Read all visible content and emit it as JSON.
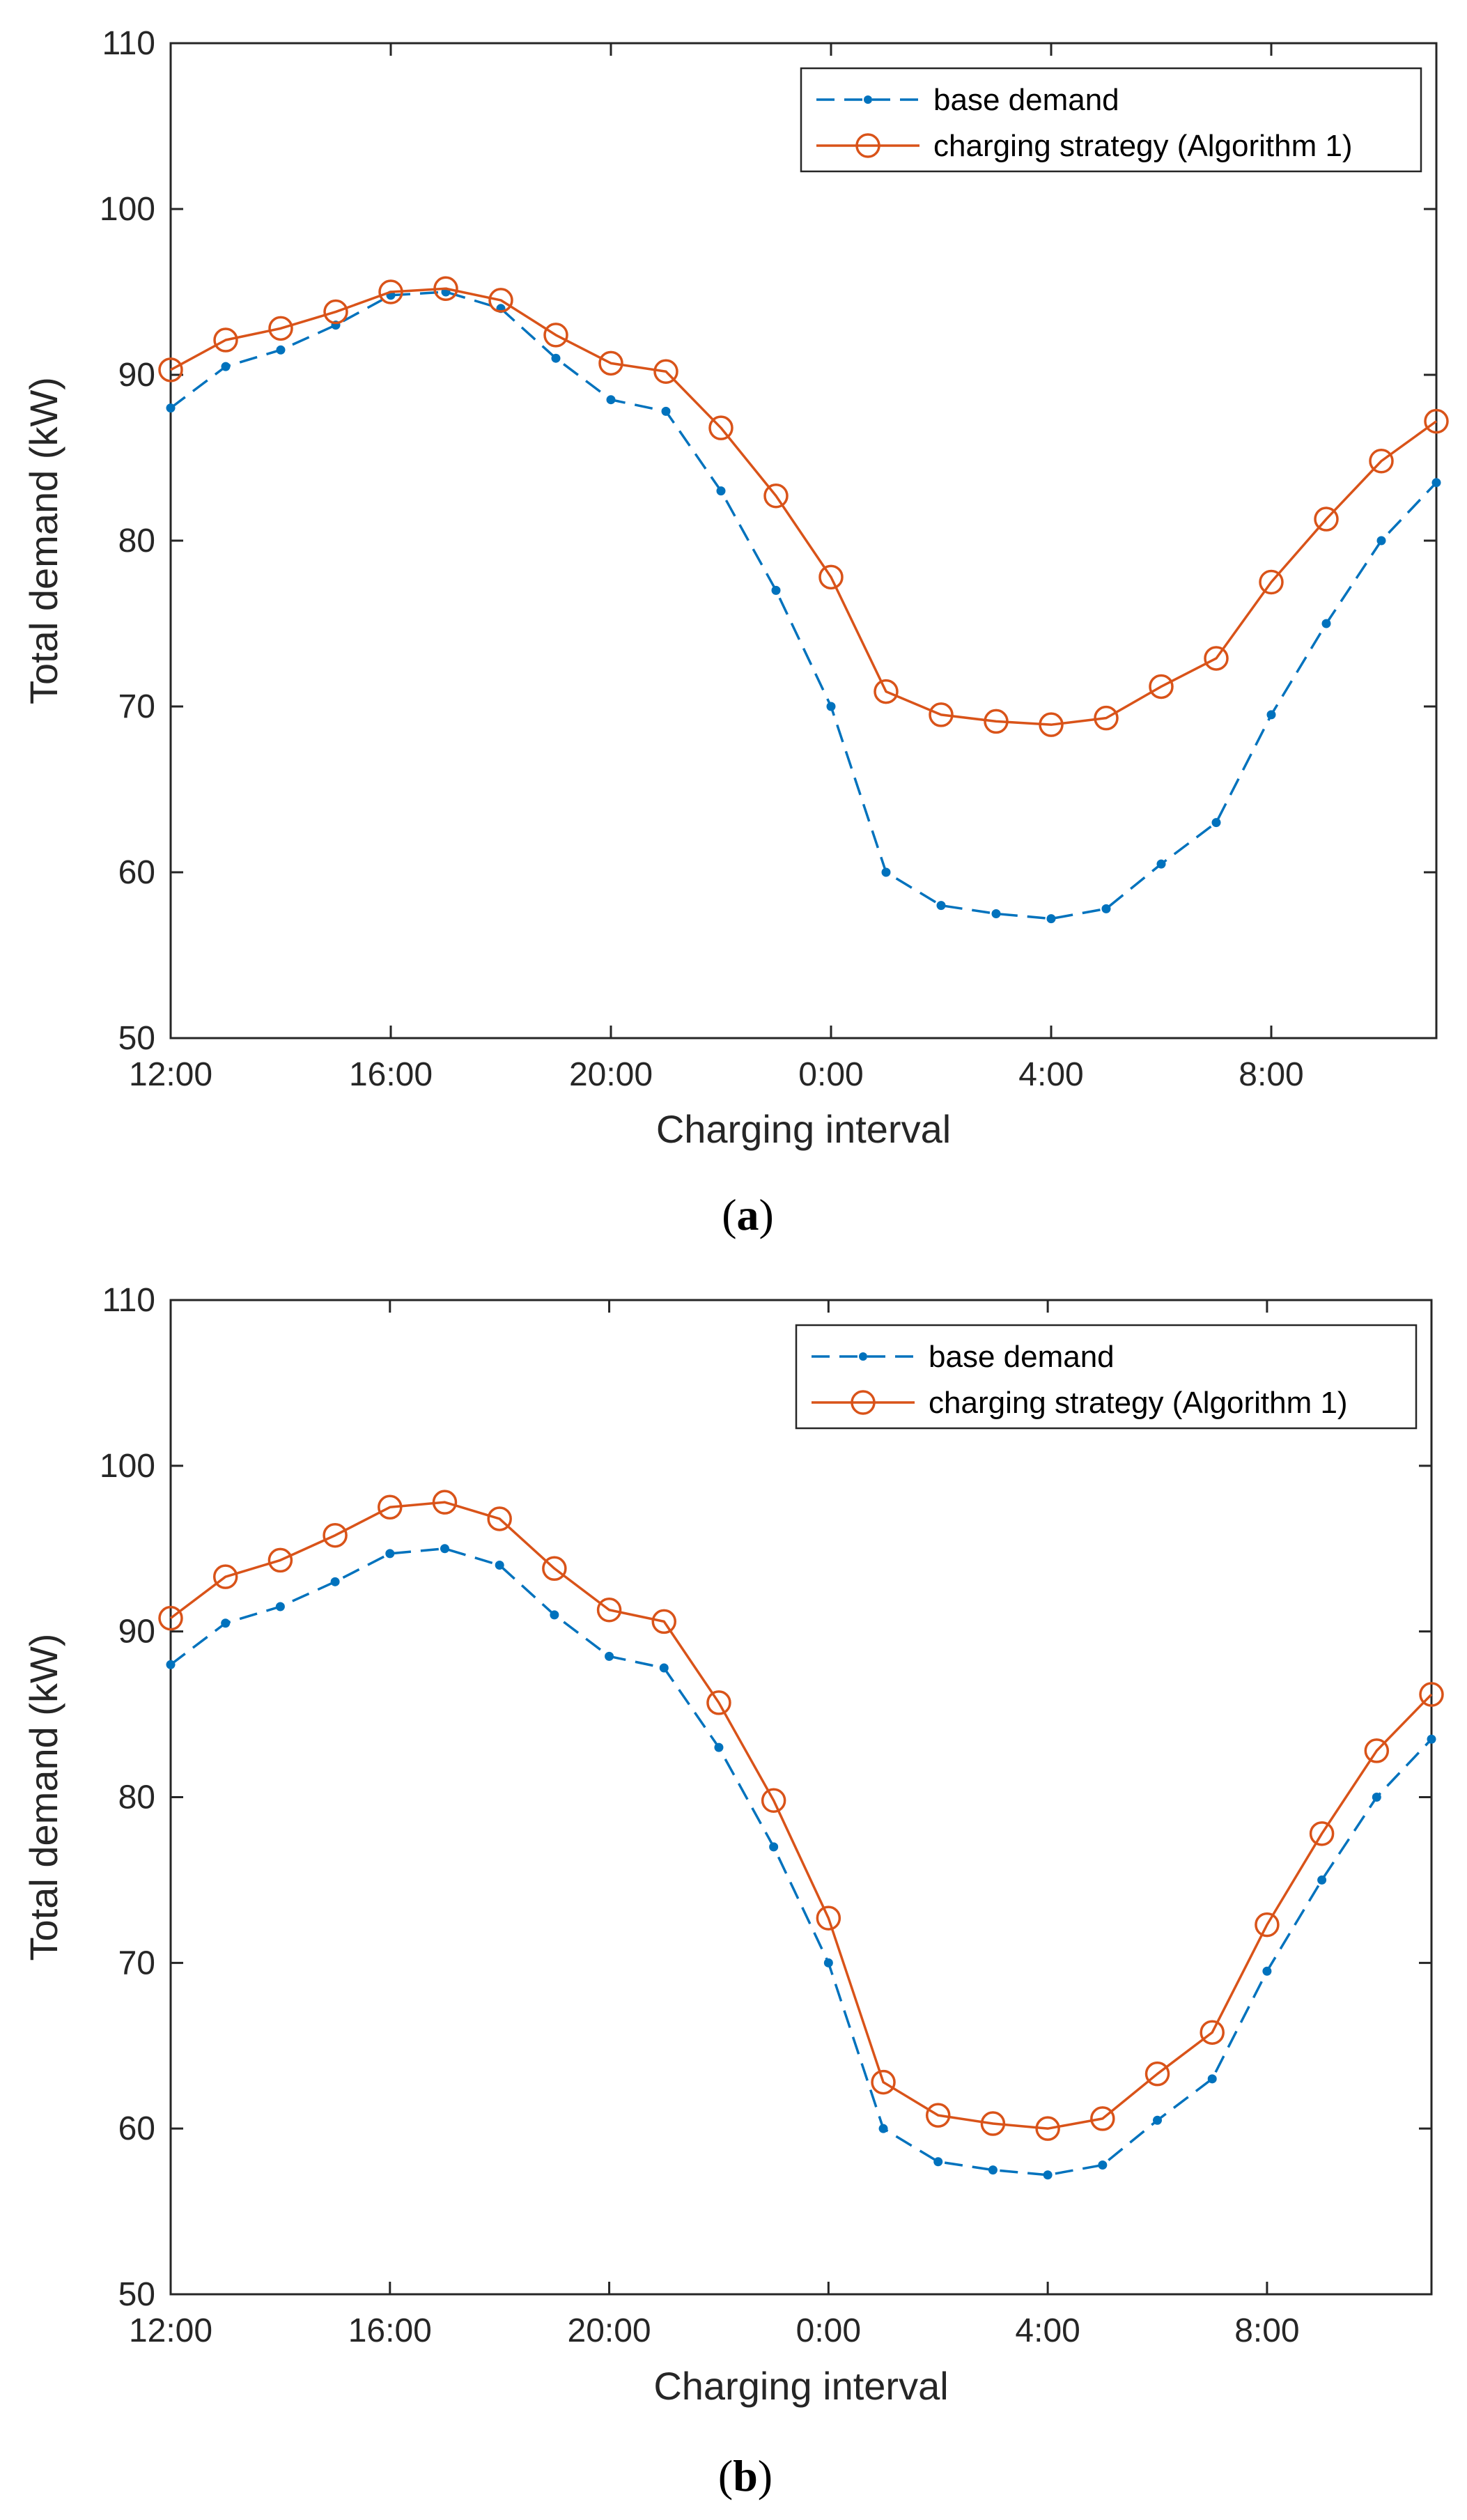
{
  "chart_data": [
    {
      "type": "line",
      "caption_open": "(",
      "caption_letter": "a",
      "caption_close": ")",
      "xlabel": "Charging interval",
      "ylabel": "Total demand (kW)",
      "ylim": [
        50,
        110
      ],
      "yticks": [
        50,
        60,
        70,
        80,
        90,
        100,
        110
      ],
      "xlim": [
        0,
        23
      ],
      "xticks": [
        0,
        4,
        8,
        12,
        16,
        20
      ],
      "xticklabels": [
        "12:00",
        "16:00",
        "20:00",
        "0:00",
        "4:00",
        "8:00"
      ],
      "legend_position": "top-right",
      "x": [
        0,
        1,
        2,
        3,
        4,
        5,
        6,
        7,
        8,
        9,
        10,
        11,
        12,
        13,
        14,
        15,
        16,
        17,
        18,
        19,
        20,
        21,
        22,
        23
      ],
      "series": [
        {
          "name": "base demand",
          "color": "#0072BD",
          "style": "dashed-dot",
          "values": [
            88,
            90.5,
            91.5,
            93,
            94.8,
            95,
            94,
            91,
            88.5,
            87.8,
            83,
            77,
            70,
            60,
            58,
            57.5,
            57.2,
            57.8,
            60.5,
            63,
            69.5,
            75,
            80,
            83.5
          ]
        },
        {
          "name": "charging strategy (Algorithm 1)",
          "color": "#D95319",
          "style": "solid-circle",
          "values": [
            90.3,
            92.1,
            92.8,
            93.8,
            95,
            95.2,
            94.5,
            92.4,
            90.7,
            90.2,
            86.8,
            82.7,
            77.8,
            70.9,
            69.5,
            69.1,
            68.9,
            69.3,
            71.2,
            72.9,
            77.5,
            81.3,
            84.8,
            87.2
          ]
        }
      ]
    },
    {
      "type": "line",
      "caption_open": "(",
      "caption_letter": "b",
      "caption_close": ")",
      "xlabel": "Charging interval",
      "ylabel": "Total demand (kW)",
      "ylim": [
        50,
        110
      ],
      "yticks": [
        50,
        60,
        70,
        80,
        90,
        100,
        110
      ],
      "xlim": [
        0,
        23
      ],
      "xticks": [
        0,
        4,
        8,
        12,
        16,
        20
      ],
      "xticklabels": [
        "12:00",
        "16:00",
        "20:00",
        "0:00",
        "4:00",
        "8:00"
      ],
      "legend_position": "top-right",
      "x": [
        0,
        1,
        2,
        3,
        4,
        5,
        6,
        7,
        8,
        9,
        10,
        11,
        12,
        13,
        14,
        15,
        16,
        17,
        18,
        19,
        20,
        21,
        22,
        23
      ],
      "series": [
        {
          "name": "base demand",
          "color": "#0072BD",
          "style": "dashed-dot",
          "values": [
            88,
            90.5,
            91.5,
            93,
            94.7,
            95,
            94,
            91,
            88.5,
            87.8,
            83,
            77,
            70,
            60,
            58,
            57.5,
            57.2,
            57.8,
            60.5,
            63,
            69.5,
            75,
            80,
            83.5
          ]
        },
        {
          "name": "charging strategy (Algorithm 1)",
          "color": "#D95319",
          "style": "solid-circle",
          "values": [
            90.8,
            93.3,
            94.3,
            95.8,
            97.5,
            97.8,
            96.8,
            93.8,
            91.3,
            90.6,
            85.7,
            79.8,
            72.7,
            62.8,
            60.8,
            60.3,
            60,
            60.6,
            63.3,
            65.8,
            72.3,
            77.8,
            82.8,
            86.2
          ]
        }
      ]
    }
  ]
}
